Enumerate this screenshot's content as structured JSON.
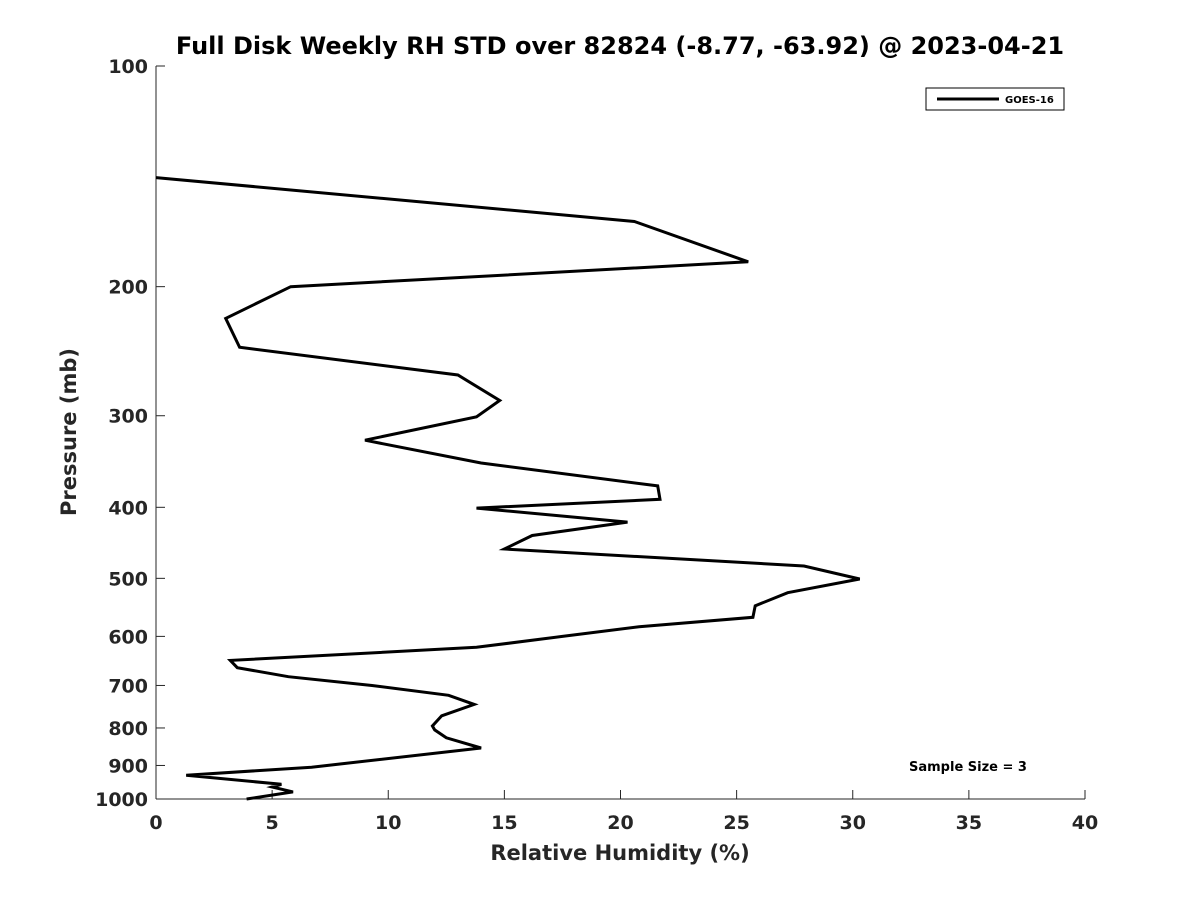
{
  "chart_data": {
    "type": "line",
    "title": "Full Disk Weekly RH STD over 82824 (-8.77, -63.92) @ 2023-04-21",
    "xlabel": "Relative Humidity (%)",
    "ylabel": "Pressure (mb)",
    "xlim": [
      0,
      40
    ],
    "ylim": [
      100,
      1000
    ],
    "y_scale": "log",
    "y_reversed": true,
    "x_ticks": [
      0,
      5,
      10,
      15,
      20,
      25,
      30,
      35,
      40
    ],
    "y_ticks": [
      100,
      200,
      300,
      400,
      500,
      600,
      700,
      800,
      900,
      1000
    ],
    "grid": false,
    "legend_position": "top-right",
    "annotation": "Sample Size = 3",
    "series": [
      {
        "name": "GOES-16",
        "color": "#000000",
        "points": [
          [
            0.0,
            142
          ],
          [
            20.6,
            163
          ],
          [
            25.5,
            185
          ],
          [
            5.8,
            200
          ],
          [
            3.0,
            221
          ],
          [
            3.6,
            242
          ],
          [
            13.0,
            264
          ],
          [
            14.8,
            286
          ],
          [
            13.8,
            301
          ],
          [
            9.0,
            324
          ],
          [
            14.0,
            348
          ],
          [
            21.6,
            374
          ],
          [
            21.7,
            390
          ],
          [
            13.8,
            401
          ],
          [
            20.3,
            419
          ],
          [
            16.2,
            437
          ],
          [
            15.0,
            456
          ],
          [
            27.9,
            481
          ],
          [
            30.3,
            501
          ],
          [
            27.2,
            523
          ],
          [
            25.8,
            545
          ],
          [
            25.7,
            565
          ],
          [
            20.8,
            582
          ],
          [
            17.5,
            600
          ],
          [
            13.8,
            621
          ],
          [
            3.2,
            647
          ],
          [
            3.5,
            662
          ],
          [
            5.7,
            681
          ],
          [
            9.3,
            700
          ],
          [
            12.6,
            722
          ],
          [
            13.7,
            743
          ],
          [
            12.3,
            770
          ],
          [
            11.9,
            795
          ],
          [
            12.0,
            805
          ],
          [
            12.5,
            825
          ],
          [
            14.0,
            852
          ],
          [
            6.7,
            905
          ],
          [
            1.3,
            928
          ],
          [
            5.4,
            955
          ],
          [
            5.0,
            963
          ],
          [
            5.9,
            978
          ],
          [
            3.9,
            1000
          ]
        ]
      }
    ]
  }
}
